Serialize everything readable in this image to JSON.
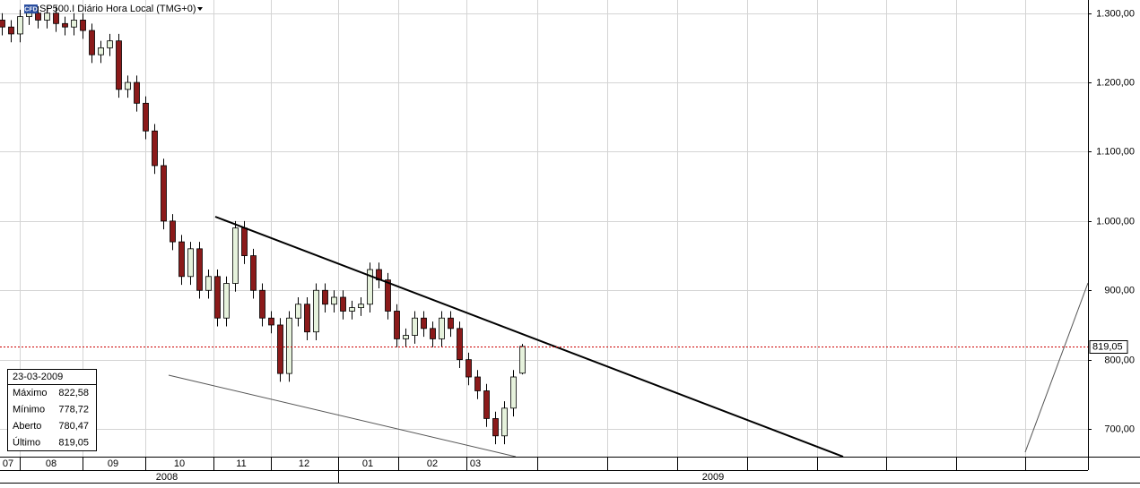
{
  "chart_data": {
    "type": "candlestick",
    "badge": "CFD",
    "title": "SP500.I Diário Hora Local (TMG+0)",
    "ylim": [
      660,
      1319
    ],
    "yticks": [
      {
        "value": 700,
        "label": "700,00"
      },
      {
        "value": 800,
        "label": "800,00"
      },
      {
        "value": 900,
        "label": "900,00"
      },
      {
        "value": 1000,
        "label": "1.000,00"
      },
      {
        "value": 1100,
        "label": "1.100,00"
      },
      {
        "value": 1200,
        "label": "1.200,00"
      },
      {
        "value": 1300,
        "label": "1.300,00"
      }
    ],
    "months": [
      "07",
      "08",
      "09",
      "10",
      "11",
      "12",
      "01",
      "02",
      "03"
    ],
    "years": [
      "2008",
      "2009"
    ],
    "up_color": "#e6f2dc",
    "down_color": "#8b1a1a",
    "open": [
      1290,
      1280,
      1270,
      1295,
      1300,
      1290,
      1300,
      1285,
      1280,
      1290,
      1275,
      1240,
      1250,
      1260,
      1190,
      1200,
      1170,
      1130,
      1080,
      1000,
      970,
      920,
      960,
      900,
      920,
      860,
      910,
      990,
      950,
      900,
      860,
      850,
      780,
      860,
      880,
      840,
      900,
      880,
      890,
      870,
      875,
      880,
      930,
      915,
      870,
      830,
      835,
      860,
      845,
      830,
      860,
      845,
      800,
      775,
      755,
      715,
      690,
      730,
      780.47
    ],
    "high": [
      1300,
      1290,
      1305,
      1310,
      1310,
      1310,
      1310,
      1295,
      1300,
      1300,
      1285,
      1260,
      1270,
      1270,
      1210,
      1210,
      1180,
      1140,
      1090,
      1010,
      980,
      970,
      970,
      930,
      930,
      920,
      1000,
      1000,
      960,
      910,
      870,
      860,
      870,
      890,
      890,
      910,
      910,
      900,
      900,
      885,
      890,
      940,
      940,
      925,
      880,
      845,
      870,
      870,
      855,
      870,
      870,
      855,
      810,
      785,
      765,
      725,
      740,
      785,
      822.58
    ],
    "low": [
      1268,
      1258,
      1258,
      1283,
      1278,
      1278,
      1273,
      1268,
      1268,
      1263,
      1228,
      1228,
      1238,
      1178,
      1178,
      1158,
      1118,
      1068,
      988,
      958,
      908,
      908,
      888,
      888,
      848,
      848,
      898,
      938,
      888,
      848,
      838,
      768,
      768,
      848,
      828,
      828,
      868,
      868,
      858,
      858,
      863,
      868,
      903,
      858,
      818,
      818,
      823,
      833,
      818,
      818,
      833,
      788,
      763,
      743,
      703,
      678,
      678,
      718,
      778.72
    ],
    "close": [
      1280,
      1270,
      1295,
      1300,
      1290,
      1300,
      1285,
      1280,
      1290,
      1275,
      1240,
      1250,
      1260,
      1190,
      1200,
      1170,
      1130,
      1080,
      1000,
      970,
      920,
      960,
      900,
      920,
      860,
      910,
      990,
      950,
      900,
      860,
      850,
      780,
      860,
      880,
      840,
      900,
      880,
      890,
      870,
      875,
      880,
      930,
      915,
      870,
      830,
      835,
      860,
      845,
      830,
      860,
      845,
      800,
      775,
      755,
      715,
      690,
      730,
      775,
      819.05
    ],
    "last_price": {
      "value": 819.05,
      "label": "819,05"
    },
    "info": {
      "date": "23-03-2009",
      "rows": [
        [
          "Máximo",
          "822,58"
        ],
        [
          "Mínimo",
          "778,72"
        ],
        [
          "Aberto",
          "780,47"
        ],
        [
          "Último",
          "819,05"
        ]
      ]
    }
  }
}
